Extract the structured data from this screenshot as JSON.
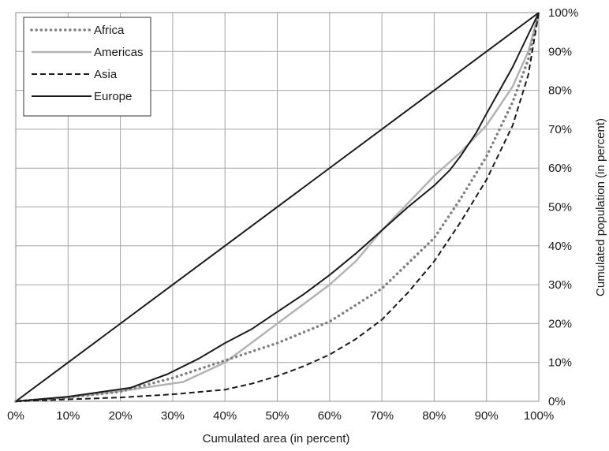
{
  "chart_data": {
    "type": "line",
    "xlabel": "Cumulated area (in percent)",
    "ylabel": "Cumulated population (in percent)",
    "xlim": [
      0,
      100
    ],
    "ylim": [
      0,
      100
    ],
    "x_ticks": [
      "0%",
      "10%",
      "20%",
      "30%",
      "40%",
      "50%",
      "60%",
      "70%",
      "80%",
      "90%",
      "100%"
    ],
    "y_ticks": [
      "0%",
      "10%",
      "20%",
      "30%",
      "40%",
      "50%",
      "60%",
      "70%",
      "80%",
      "90%",
      "100%"
    ],
    "grid": true,
    "legend_position": "top-left",
    "equality_line": [
      [
        0,
        0
      ],
      [
        100,
        100
      ]
    ],
    "series": [
      {
        "name": "Africa",
        "style": "dotted",
        "color": "#808080",
        "points": [
          [
            0,
            0
          ],
          [
            10,
            1
          ],
          [
            20,
            2.5
          ],
          [
            30,
            6
          ],
          [
            40,
            10.5
          ],
          [
            50,
            15
          ],
          [
            60,
            20.5
          ],
          [
            70,
            29
          ],
          [
            80,
            42
          ],
          [
            85,
            52
          ],
          [
            90,
            63
          ],
          [
            95,
            77
          ],
          [
            98,
            88
          ],
          [
            100,
            100
          ]
        ]
      },
      {
        "name": "Americas",
        "style": "solid",
        "color": "#b3b3b3",
        "points": [
          [
            0,
            0
          ],
          [
            10,
            1
          ],
          [
            22,
            3
          ],
          [
            32,
            5
          ],
          [
            40,
            10
          ],
          [
            45,
            15
          ],
          [
            50,
            20
          ],
          [
            55,
            25
          ],
          [
            60,
            30
          ],
          [
            65,
            36
          ],
          [
            70,
            44
          ],
          [
            75,
            51
          ],
          [
            80,
            58
          ],
          [
            85,
            64
          ],
          [
            90,
            71
          ],
          [
            95,
            81
          ],
          [
            98,
            90
          ],
          [
            100,
            100
          ]
        ]
      },
      {
        "name": "Asia",
        "style": "dashed",
        "color": "#1a1a1a",
        "points": [
          [
            0,
            0
          ],
          [
            10,
            0.5
          ],
          [
            20,
            1
          ],
          [
            30,
            1.8
          ],
          [
            40,
            3
          ],
          [
            45,
            4.5
          ],
          [
            50,
            6.5
          ],
          [
            55,
            9
          ],
          [
            60,
            12
          ],
          [
            65,
            16
          ],
          [
            70,
            21
          ],
          [
            75,
            28
          ],
          [
            80,
            36
          ],
          [
            85,
            46
          ],
          [
            90,
            57
          ],
          [
            95,
            71
          ],
          [
            98,
            84
          ],
          [
            100,
            100
          ]
        ]
      },
      {
        "name": "Europe",
        "style": "solid",
        "color": "#1a1a1a",
        "points": [
          [
            0,
            0
          ],
          [
            10,
            1.2
          ],
          [
            22,
            3.5
          ],
          [
            29,
            7
          ],
          [
            35,
            11
          ],
          [
            40,
            15
          ],
          [
            45,
            18.5
          ],
          [
            50,
            23
          ],
          [
            55,
            27.5
          ],
          [
            60,
            32.5
          ],
          [
            65,
            38
          ],
          [
            70,
            44
          ],
          [
            75,
            50
          ],
          [
            80,
            55.5
          ],
          [
            83,
            59.5
          ],
          [
            85,
            63
          ],
          [
            88,
            69
          ],
          [
            90,
            74
          ],
          [
            95,
            86
          ],
          [
            100,
            100
          ]
        ]
      }
    ]
  }
}
